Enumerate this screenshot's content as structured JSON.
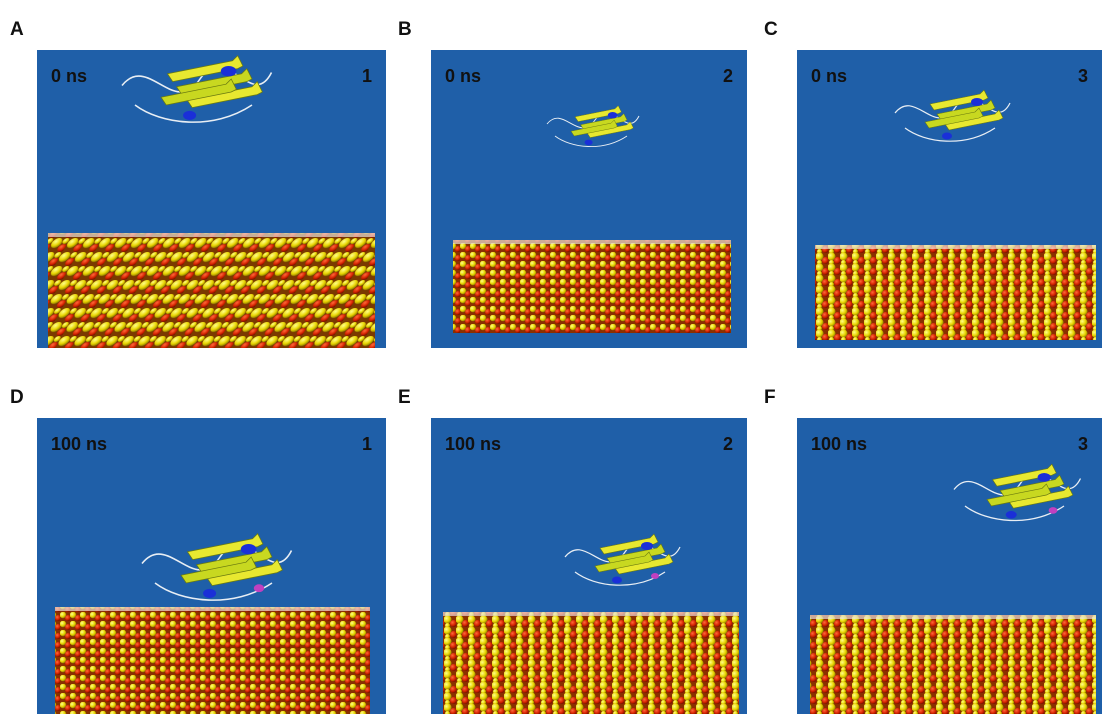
{
  "panels": [
    {
      "letter": "A",
      "time": "0 ns",
      "number": "1"
    },
    {
      "letter": "B",
      "time": "0 ns",
      "number": "2"
    },
    {
      "letter": "C",
      "time": "0 ns",
      "number": "3"
    },
    {
      "letter": "D",
      "time": "100 ns",
      "number": "1"
    },
    {
      "letter": "E",
      "time": "100 ns",
      "number": "2"
    },
    {
      "letter": "F",
      "time": "100 ns",
      "number": "3"
    }
  ]
}
